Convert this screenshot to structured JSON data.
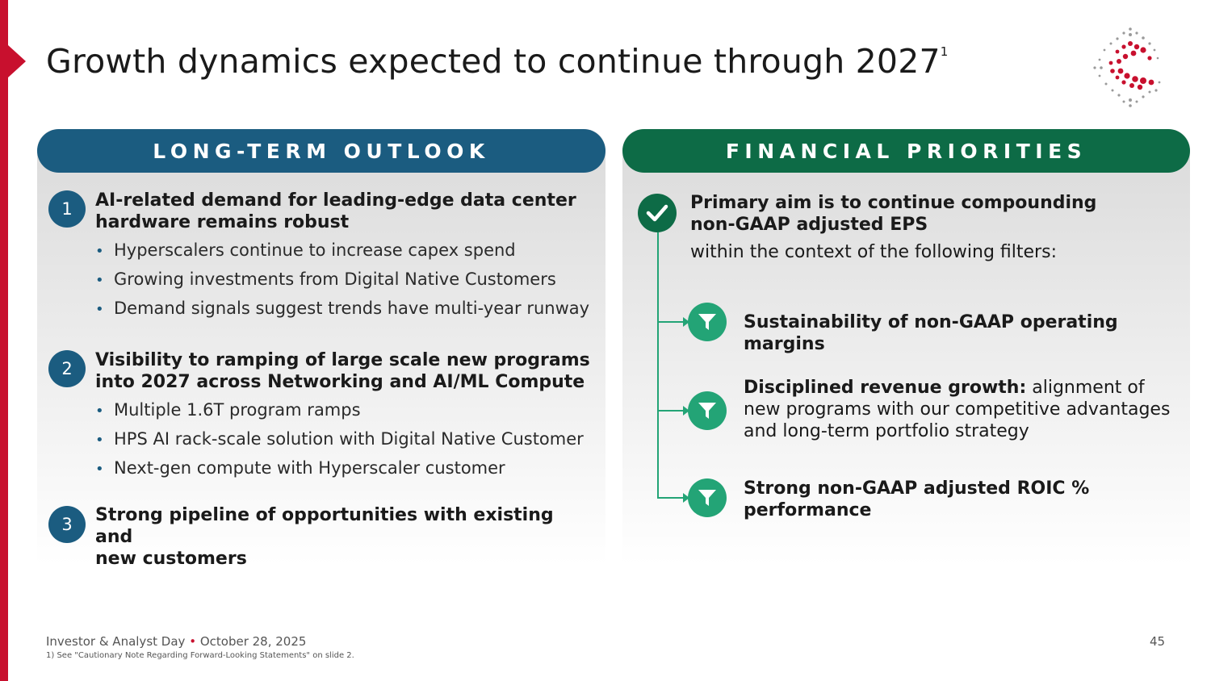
{
  "title": "Growth dynamics expected to continue through 2027",
  "title_superscript": "1",
  "left_panel": {
    "header": "LONG-TERM OUTLOOK",
    "items": [
      {
        "number": "1",
        "heading_line1": "AI-related demand for leading-edge data center",
        "heading_line2": "hardware remains robust",
        "bullets": [
          "Hyperscalers continue to increase capex spend",
          "Growing investments from Digital Native Customers",
          "Demand signals suggest trends have multi-year runway"
        ]
      },
      {
        "number": "2",
        "heading_line1": "Visibility to ramping of large scale new programs",
        "heading_line2": "into 2027 across Networking and AI/ML Compute",
        "bullets": [
          "Multiple 1.6T program ramps",
          "HPS AI rack-scale solution with Digital Native Customer",
          "Next-gen compute with Hyperscaler customer"
        ]
      },
      {
        "number": "3",
        "heading_line1": "Strong pipeline of opportunities with existing and",
        "heading_line2": "new customers",
        "bullets": []
      }
    ]
  },
  "right_panel": {
    "header": "FINANCIAL PRIORITIES",
    "aim_line1": "Primary aim is to continue compounding",
    "aim_line2": "non-GAAP adjusted EPS",
    "aim_sub": "within the context of the following filters:",
    "filters": [
      {
        "bold": "Sustainability of non-GAAP operating margins",
        "rest": ""
      },
      {
        "bold": "Disciplined revenue growth:",
        "rest": " alignment of new programs with our competitive advantages and long-term portfolio strategy"
      },
      {
        "bold": "Strong non-GAAP adjusted ROIC % performance",
        "rest": ""
      }
    ]
  },
  "footer": {
    "event": "Investor & Analyst Day",
    "separator": "•",
    "date": "October 28, 2025",
    "footnote": "1)   See \"Cautionary Note Regarding Forward-Looking Statements\" on slide 2.",
    "page_number": "45"
  },
  "colors": {
    "accent_red": "#c8102e",
    "header_blue": "#1b5c80",
    "header_green": "#0d6b46",
    "filter_green": "#23a476"
  },
  "icons": [
    "check-icon",
    "filter-funnel-icon",
    "company-logo-icon"
  ]
}
